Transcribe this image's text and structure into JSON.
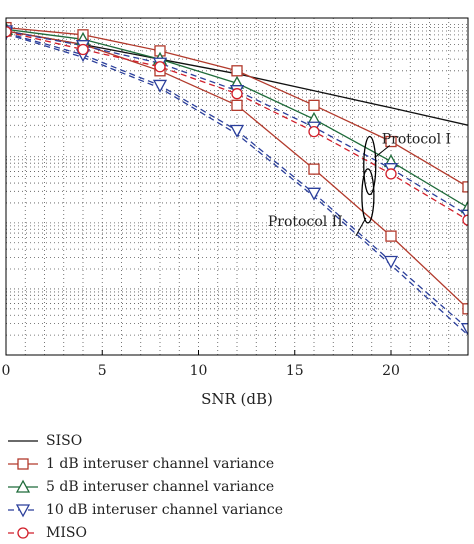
{
  "chart_data": {
    "type": "line",
    "xlabel": "SNR (dB)",
    "ylabel": "",
    "y_scale": "log",
    "xlim": [
      0,
      24
    ],
    "ylim_log10": [
      -5,
      0.1
    ],
    "x_ticks": [
      0,
      5,
      10,
      15,
      20
    ],
    "grid": true,
    "legend_position": "bottom",
    "series": [
      {
        "name": "SISO",
        "color": "#111111",
        "marker": "none",
        "dash": "solid",
        "x": [
          0,
          4,
          8,
          12,
          16,
          20,
          24
        ],
        "y": [
          0.8,
          0.5,
          0.3,
          0.18,
          0.1,
          0.055,
          0.03
        ]
      },
      {
        "name": "1 dB interuser channel variance",
        "color": "#b23a2c",
        "marker": "square",
        "dash": "solid",
        "x": [
          0,
          4,
          8,
          12,
          16,
          20,
          24
        ],
        "y": [
          0.9,
          0.7,
          0.4,
          0.2,
          0.06,
          0.017,
          0.0035
        ]
      },
      {
        "name": "",
        "color": "#b23a2c",
        "marker": "square",
        "dash": "solid",
        "x": [
          0,
          4,
          8,
          12,
          16,
          20,
          24
        ],
        "y": [
          0.8,
          0.5,
          0.2,
          0.06,
          0.0065,
          0.00063,
          5e-05
        ]
      },
      {
        "name": "5 dB interuser channel variance",
        "color": "#1f6b3a",
        "marker": "triangle-up",
        "dash": "solid",
        "x": [
          0,
          4,
          8,
          12,
          16,
          20,
          24
        ],
        "y": [
          0.85,
          0.6,
          0.3,
          0.13,
          0.037,
          0.0085,
          0.0017
        ]
      },
      {
        "name": "10 dB interuser channel variance",
        "color": "#2b3f9b",
        "marker": "triangle-down",
        "dash": "dashed",
        "x": [
          0,
          4,
          8,
          12,
          16,
          20,
          24
        ],
        "y": [
          0.8,
          0.48,
          0.26,
          0.1,
          0.028,
          0.0066,
          0.0013
        ]
      },
      {
        "name": "",
        "color": "#2b3f9b",
        "marker": "triangle-down",
        "dash": "dashed",
        "x": [
          0,
          4,
          8,
          12,
          16,
          20,
          24
        ],
        "y": [
          0.75,
          0.35,
          0.12,
          0.025,
          0.0028,
          0.00026,
          2.5e-05
        ]
      },
      {
        "name": "MISO",
        "color": "#d11f2a",
        "marker": "circle",
        "dash": "dashed",
        "x": [
          0,
          4,
          8,
          12,
          16,
          20,
          24
        ],
        "y": [
          0.78,
          0.42,
          0.23,
          0.09,
          0.024,
          0.0055,
          0.0011
        ]
      },
      {
        "name": "",
        "color": "#2b3f9b",
        "marker": "none",
        "dash": "dashed",
        "x": [
          0,
          4,
          8,
          12,
          16,
          20,
          24
        ],
        "y": [
          0.72,
          0.32,
          0.11,
          0.022,
          0.0025,
          0.00023,
          2e-05
        ]
      }
    ],
    "annotations": [
      {
        "text": "Protocol I",
        "x": 19,
        "y": 0.021
      },
      {
        "text": "Protocol II",
        "x": 18.8,
        "y": 0.0009
      }
    ]
  }
}
